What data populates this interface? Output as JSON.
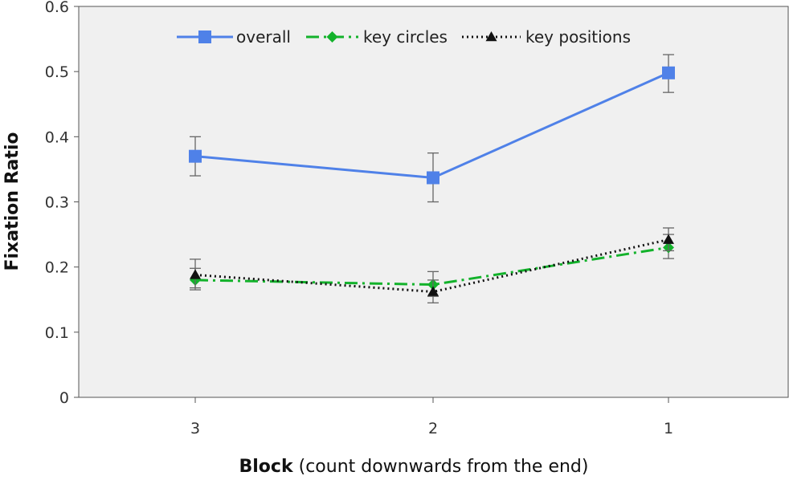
{
  "chart_data": {
    "type": "line",
    "categories": [
      "3",
      "2",
      "1"
    ],
    "ylim": [
      0,
      0.6
    ],
    "yticks": [
      "0",
      "0.1",
      "0.2",
      "0.3",
      "0.4",
      "0.5",
      "0.6"
    ],
    "ylabel": "Fixation Ratio",
    "xlabel_bold": "Block",
    "xlabel_rest": "(count downwards from the end)",
    "legend_position": "top",
    "plot_background": "#f0f0f0",
    "series": [
      {
        "name": "overall",
        "values": [
          0.37,
          0.337,
          0.498
        ],
        "err_low": [
          0.34,
          0.3,
          0.468
        ],
        "err_high": [
          0.4,
          0.375,
          0.526
        ],
        "color": "#4f81e8",
        "marker": "square",
        "dash": "solid"
      },
      {
        "name": "key circles",
        "values": [
          0.18,
          0.173,
          0.23
        ],
        "err_low": [
          0.165,
          0.155,
          0.213
        ],
        "err_high": [
          0.198,
          0.193,
          0.25
        ],
        "color": "#13b22b",
        "marker": "diamond",
        "dash": "dashdot"
      },
      {
        "name": "key positions",
        "values": [
          0.188,
          0.162,
          0.242
        ],
        "err_low": [
          0.168,
          0.145,
          0.225
        ],
        "err_high": [
          0.212,
          0.18,
          0.26
        ],
        "color": "#111111",
        "marker": "triangle",
        "dash": "dotted"
      }
    ]
  }
}
